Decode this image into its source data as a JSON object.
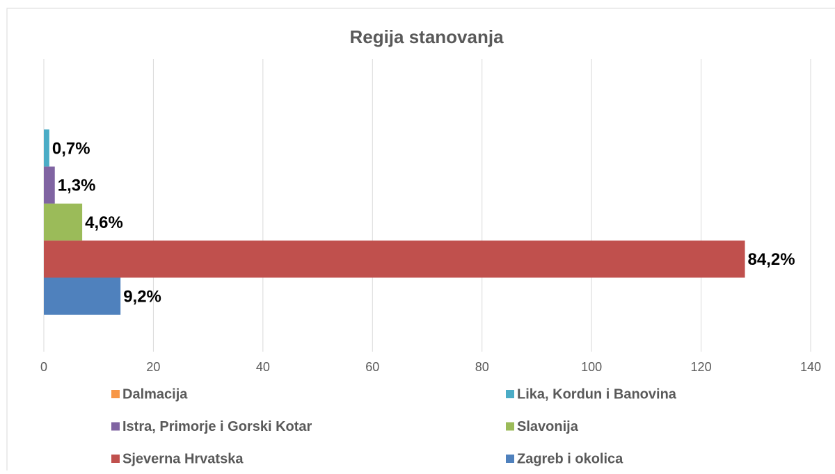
{
  "chart_data": {
    "type": "bar",
    "orientation": "horizontal",
    "title": "Regija stanovanja",
    "series": [
      {
        "name": "Dalmacija",
        "color": "#f79646",
        "values": [
          0
        ]
      },
      {
        "name": "Lika, Kordun i Banovina",
        "color": "#4bacc6",
        "values": [
          1
        ],
        "value_labels": [
          "0,7%"
        ]
      },
      {
        "name": "Istra, Primorje i Gorski Kotar",
        "color": "#8064a2",
        "values": [
          2
        ],
        "value_labels": [
          "1,3%"
        ]
      },
      {
        "name": "Slavonija",
        "color": "#9bbb59",
        "values": [
          7
        ],
        "value_labels": [
          "4,6%"
        ]
      },
      {
        "name": "Sjeverna Hrvatska",
        "color": "#c0504d",
        "values": [
          128
        ],
        "value_labels": [
          "84,2%"
        ]
      },
      {
        "name": "Zagreb i okolica",
        "color": "#4f81bd",
        "values": [
          14
        ],
        "value_labels": [
          "9,2%"
        ]
      }
    ],
    "xlim": [
      0,
      140
    ],
    "xticks": [
      0,
      20,
      40,
      60,
      80,
      100,
      120,
      140
    ],
    "grid": true,
    "legend": "bottom"
  }
}
